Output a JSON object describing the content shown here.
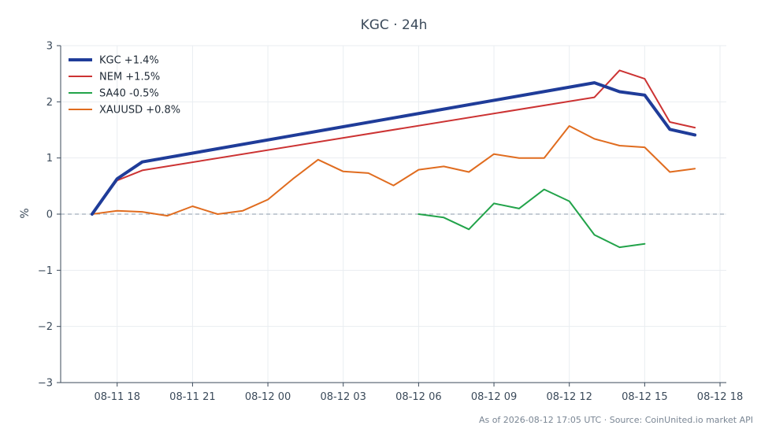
{
  "chart_data": {
    "type": "line",
    "title": "KGC · 24h",
    "ylabel": "%",
    "xlabel": "",
    "ylim": [
      -3,
      3
    ],
    "y_ticks": [
      3,
      2,
      1,
      0,
      -1,
      -2,
      -3
    ],
    "y_tick_labels": [
      "3",
      "2",
      "1",
      "0",
      "−1",
      "−2",
      "−3"
    ],
    "x_range": [
      "2026-08-11 15:45",
      "2026-08-12 18:15"
    ],
    "x_ticks": [
      "2026-08-11 18:00",
      "2026-08-11 21:00",
      "2026-08-12 00:00",
      "2026-08-12 03:00",
      "2026-08-12 06:00",
      "2026-08-12 09:00",
      "2026-08-12 12:00",
      "2026-08-12 15:00",
      "2026-08-12 18:00"
    ],
    "x_tick_labels": [
      "08-11 18",
      "08-11 21",
      "08-12 00",
      "08-12 03",
      "08-12 06",
      "08-12 09",
      "08-12 12",
      "08-12 15",
      "08-12 18"
    ],
    "grid": true,
    "reference_line": 0,
    "legend_position": "top-left",
    "series": [
      {
        "name": "KGC +1.4%",
        "color": "#1f3c99",
        "width": "thick",
        "x": [
          "2026-08-11 17:00",
          "2026-08-11 18:00",
          "2026-08-11 19:00",
          "2026-08-12 13:00",
          "2026-08-12 14:00",
          "2026-08-12 15:00",
          "2026-08-12 16:00",
          "2026-08-12 17:00"
        ],
        "y": [
          0.0,
          0.63,
          0.93,
          2.34,
          2.18,
          2.12,
          1.51,
          1.41
        ]
      },
      {
        "name": "NEM +1.5%",
        "color": "#cc3333",
        "width": "normal",
        "x": [
          "2026-08-11 17:00",
          "2026-08-11 18:00",
          "2026-08-11 19:00",
          "2026-08-12 13:00",
          "2026-08-12 14:00",
          "2026-08-12 15:00",
          "2026-08-12 16:00",
          "2026-08-12 17:00"
        ],
        "y": [
          0.0,
          0.6,
          0.78,
          2.08,
          2.56,
          2.41,
          1.64,
          1.54
        ]
      },
      {
        "name": "SA40 -0.5%",
        "color": "#22a34a",
        "width": "normal",
        "x": [
          "2026-08-12 06:00",
          "2026-08-12 07:00",
          "2026-08-12 08:00",
          "2026-08-12 09:00",
          "2026-08-12 10:00",
          "2026-08-12 11:00",
          "2026-08-12 12:00",
          "2026-08-12 13:00",
          "2026-08-12 14:00",
          "2026-08-12 15:00"
        ],
        "y": [
          0.0,
          -0.06,
          -0.27,
          0.19,
          0.1,
          0.44,
          0.23,
          -0.37,
          -0.59,
          -0.53
        ]
      },
      {
        "name": "XAUUSD +0.8%",
        "color": "#e06c1f",
        "width": "normal",
        "x": [
          "2026-08-11 17:00",
          "2026-08-11 18:00",
          "2026-08-11 19:00",
          "2026-08-11 20:00",
          "2026-08-11 21:00",
          "2026-08-11 22:00",
          "2026-08-11 23:00",
          "2026-08-12 00:00",
          "2026-08-12 01:00",
          "2026-08-12 02:00",
          "2026-08-12 03:00",
          "2026-08-12 04:00",
          "2026-08-12 05:00",
          "2026-08-12 06:00",
          "2026-08-12 07:00",
          "2026-08-12 08:00",
          "2026-08-12 09:00",
          "2026-08-12 10:00",
          "2026-08-12 11:00",
          "2026-08-12 12:00",
          "2026-08-12 13:00",
          "2026-08-12 14:00",
          "2026-08-12 15:00",
          "2026-08-12 16:00",
          "2026-08-12 17:00"
        ],
        "y": [
          0.0,
          0.06,
          0.04,
          -0.03,
          0.14,
          0.0,
          0.06,
          0.26,
          0.63,
          0.97,
          0.76,
          0.73,
          0.51,
          0.79,
          0.85,
          0.75,
          1.07,
          1.0,
          1.0,
          1.57,
          1.34,
          1.22,
          1.19,
          0.75,
          0.81
        ]
      }
    ]
  },
  "footer": "As of 2026-08-12 17:05 UTC · Source: CoinUnited.io market API"
}
